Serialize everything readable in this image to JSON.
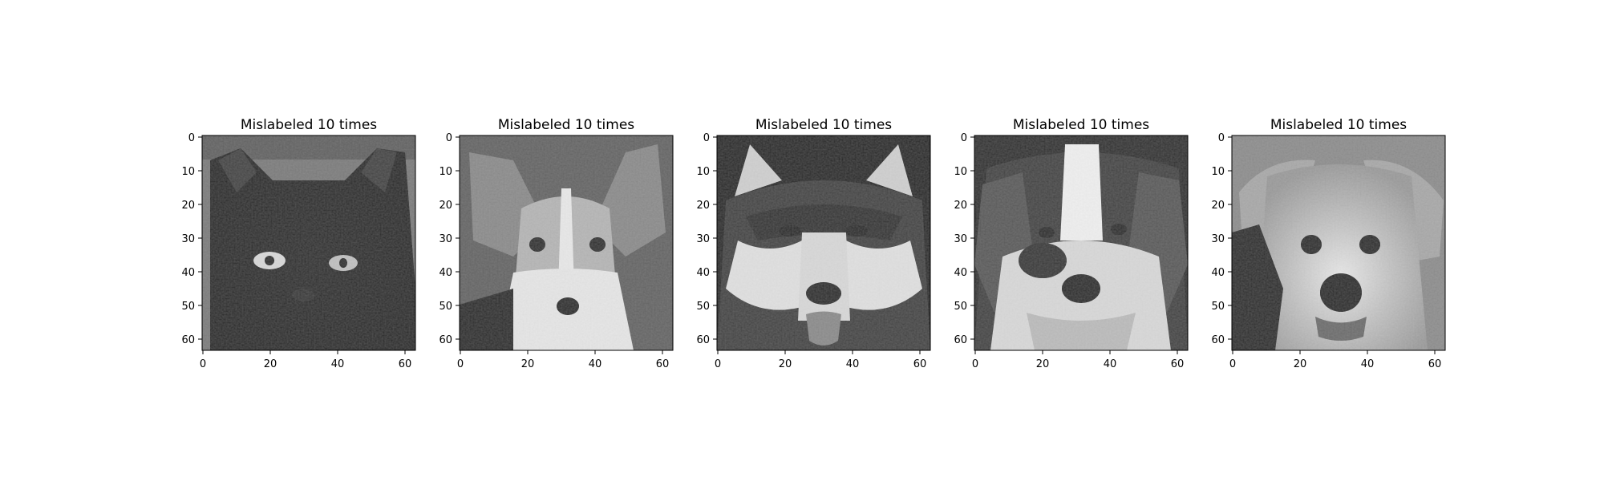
{
  "figure": {
    "panels": [
      {
        "title": "Mislabeled 10 times",
        "subject": "black-cat-face",
        "x_ticks": [
          "0",
          "20",
          "40",
          "60"
        ],
        "y_ticks": [
          "0",
          "10",
          "20",
          "30",
          "40",
          "50",
          "60"
        ]
      },
      {
        "title": "Mislabeled 10 times",
        "subject": "papillon-dog-face",
        "x_ticks": [
          "0",
          "20",
          "40",
          "60"
        ],
        "y_ticks": [
          "0",
          "10",
          "20",
          "30",
          "40",
          "50",
          "60"
        ]
      },
      {
        "title": "Mislabeled 10 times",
        "subject": "husky-dog-face",
        "x_ticks": [
          "0",
          "20",
          "40",
          "60"
        ],
        "y_ticks": [
          "0",
          "10",
          "20",
          "30",
          "40",
          "50",
          "60"
        ]
      },
      {
        "title": "Mislabeled 10 times",
        "subject": "saint-bernard-dog-face",
        "x_ticks": [
          "0",
          "20",
          "40",
          "60"
        ],
        "y_ticks": [
          "0",
          "10",
          "20",
          "30",
          "40",
          "50",
          "60"
        ]
      },
      {
        "title": "Mislabeled 10 times",
        "subject": "light-retriever-dog-face",
        "x_ticks": [
          "0",
          "20",
          "40",
          "60"
        ],
        "y_ticks": [
          "0",
          "10",
          "20",
          "30",
          "40",
          "50",
          "60"
        ]
      }
    ],
    "image_extent": 64,
    "colormap": "grayscale"
  }
}
